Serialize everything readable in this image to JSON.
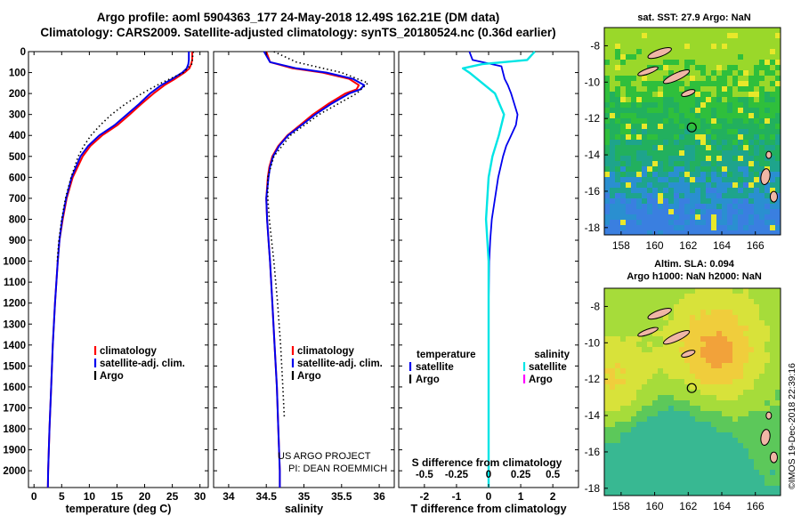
{
  "header": {
    "line1": "Argo profile: aoml 5904363_177 24-May-2018 12.49S 162.21E (DM data)",
    "line2": "Climatology: CARS2009. Satellite-adjusted climatology: synTS_20180524.nc (0.36d earlier)"
  },
  "depth_ticks": [
    0,
    100,
    200,
    300,
    400,
    500,
    600,
    700,
    800,
    900,
    1000,
    1100,
    1200,
    1300,
    1400,
    1500,
    1600,
    1700,
    1800,
    1900,
    2000
  ],
  "colors": {
    "climatology": "#ff0000",
    "satellite": "#0000ee",
    "argo": "#000000",
    "sat_cyan": "#00e5e5",
    "argo_magenta": "#ff00ff"
  },
  "panels": {
    "temperature": {
      "xlabel": "temperature (deg C)",
      "ticks": [
        "0",
        "5",
        "10",
        "15",
        "20",
        "25",
        "30"
      ],
      "legend": [
        "climatology",
        "satellite-adj. clim.",
        "Argo"
      ]
    },
    "salinity": {
      "xlabel": "salinity",
      "ticks": [
        "34",
        "34.5",
        "35",
        "35.5",
        "36"
      ],
      "legend": [
        "climatology",
        "satellite-adj. clim.",
        "Argo"
      ],
      "credit1": "US ARGO PROJECT",
      "credit2": "PI: DEAN ROEMMICH"
    },
    "difference": {
      "xlabel": "T difference from climatology",
      "toplabel": "S difference from climatology",
      "bottom_ticks": [
        "-2",
        "-1",
        "0",
        "1",
        "2"
      ],
      "top_ticks": [
        "-0.5",
        "-0.25",
        "0",
        "0.25",
        "0.5"
      ],
      "legend_left_title": "temperature",
      "legend_right_title": "salinity",
      "legend_items": [
        "satellite",
        "Argo"
      ]
    }
  },
  "maps": {
    "top_title": "sat. SST: 27.9 Argo: NaN",
    "bottom_title1": "Altim. SLA: 0.094",
    "bottom_title2": "Argo h1000: NaN h2000: NaN",
    "lon_ticks": [
      "158",
      "160",
      "162",
      "164",
      "166"
    ],
    "lat_ticks": [
      "-8",
      "-10",
      "-12",
      "-14",
      "-16",
      "-18"
    ]
  },
  "watermark": "©IMOS 19-Dec-2018 22:39:16",
  "chart_data": [
    {
      "type": "line",
      "xlabel": "temperature (deg C)",
      "xlim": [
        -1,
        31.5
      ],
      "ylim": [
        2080,
        0
      ],
      "series": [
        {
          "name": "climatology",
          "depth": [
            0,
            40,
            60,
            80,
            100,
            130,
            160,
            200,
            250,
            300,
            350,
            400,
            450,
            500,
            600,
            700,
            800,
            900,
            1000,
            1200,
            1400,
            1600,
            1800,
            2000,
            2080
          ],
          "values": [
            28.6,
            28.6,
            28.4,
            28.1,
            27.2,
            25.5,
            23.6,
            21.6,
            19.4,
            17.3,
            15.1,
            12.3,
            10.2,
            8.8,
            7.0,
            5.9,
            5.2,
            4.6,
            4.3,
            3.8,
            3.4,
            3.1,
            2.8,
            2.55,
            2.5
          ]
        },
        {
          "name": "satellite-adj. clim.",
          "depth": [
            0,
            40,
            60,
            80,
            100,
            130,
            160,
            200,
            250,
            300,
            350,
            400,
            450,
            500,
            600,
            700,
            800,
            900,
            1000,
            1200,
            1400,
            1600,
            1800,
            2000,
            2080
          ],
          "values": [
            28.0,
            28.0,
            27.9,
            27.6,
            26.8,
            25.0,
            23.0,
            21.0,
            19.0,
            16.8,
            14.6,
            11.8,
            9.8,
            8.4,
            6.8,
            5.8,
            5.1,
            4.6,
            4.3,
            3.8,
            3.4,
            3.1,
            2.8,
            2.55,
            2.5
          ]
        },
        {
          "name": "Argo",
          "depth": [
            0,
            60,
            100,
            150,
            200,
            250,
            300,
            350,
            400,
            450,
            500,
            600,
            700,
            800,
            900,
            1000
          ],
          "values": [
            28.8,
            28.5,
            27.0,
            23.0,
            19.5,
            16.5,
            14.0,
            12.0,
            10.3,
            9.0,
            8.0,
            6.7,
            5.7,
            5.0,
            4.5,
            4.2
          ]
        }
      ]
    },
    {
      "type": "line",
      "xlabel": "salinity",
      "xlim": [
        33.8,
        36.2
      ],
      "ylim": [
        2080,
        0
      ],
      "series": [
        {
          "name": "climatology",
          "depth": [
            0,
            50,
            80,
            100,
            130,
            160,
            180,
            200,
            250,
            300,
            350,
            400,
            450,
            500,
            550,
            600,
            700,
            800,
            900,
            1000,
            1200,
            1400,
            1600,
            1800,
            2000,
            2080
          ],
          "values": [
            34.5,
            34.55,
            34.85,
            35.25,
            35.6,
            35.73,
            35.7,
            35.55,
            35.32,
            35.12,
            34.95,
            34.78,
            34.66,
            34.58,
            34.54,
            34.52,
            34.5,
            34.51,
            34.53,
            34.55,
            34.58,
            34.61,
            34.64,
            34.66,
            34.68,
            34.68
          ]
        },
        {
          "name": "satellite-adj. clim.",
          "depth": [
            0,
            50,
            80,
            100,
            130,
            160,
            180,
            200,
            250,
            300,
            350,
            400,
            450,
            500,
            550,
            600,
            700,
            800,
            900,
            1000,
            1200,
            1400,
            1600,
            1800,
            2000,
            2080
          ],
          "values": [
            34.47,
            34.55,
            34.9,
            35.3,
            35.65,
            35.8,
            35.75,
            35.6,
            35.36,
            35.15,
            34.97,
            34.79,
            34.67,
            34.59,
            34.55,
            34.53,
            34.5,
            34.51,
            34.53,
            34.55,
            34.58,
            34.61,
            34.64,
            34.66,
            34.68,
            34.68
          ]
        },
        {
          "name": "Argo",
          "depth": [
            0,
            50,
            100,
            150,
            200,
            250,
            300,
            400,
            500,
            600,
            700,
            800,
            900,
            1000,
            1200,
            1400,
            1600,
            1750
          ],
          "values": [
            34.6,
            34.9,
            35.5,
            35.85,
            35.7,
            35.45,
            35.2,
            34.82,
            34.6,
            34.52,
            34.52,
            34.54,
            34.57,
            34.6,
            34.65,
            34.69,
            34.72,
            34.74
          ]
        }
      ]
    },
    {
      "type": "line",
      "xlabel": "T difference from climatology",
      "xlim": [
        -2.8,
        2.8
      ],
      "ylim": [
        2080,
        0
      ],
      "series": [
        {
          "name": "satellite",
          "depth": [
            0,
            40,
            50,
            70,
            100,
            130,
            160,
            200,
            250,
            300,
            350,
            400,
            450,
            500,
            600,
            700,
            800,
            900,
            1000,
            1200,
            1400,
            1600,
            1800,
            2000,
            2080
          ],
          "values": [
            -0.6,
            -0.5,
            -0.2,
            0.4,
            0.45,
            0.5,
            0.6,
            0.7,
            0.8,
            0.9,
            0.85,
            0.7,
            0.55,
            0.45,
            0.3,
            0.2,
            0.1,
            0.05,
            0.02,
            0.0,
            0.0,
            0.0,
            0.0,
            0.0,
            0.0
          ]
        },
        {
          "name": "salinity satellite",
          "depth": [
            0,
            40,
            60,
            80,
            100,
            150,
            200,
            300,
            400,
            500,
            600,
            800,
            1000,
            1200,
            1500,
            1800,
            2000,
            2080
          ],
          "values": [
            0.36,
            0.3,
            -0.05,
            -0.2,
            -0.15,
            -0.05,
            0.05,
            0.12,
            0.08,
            0.03,
            0.0,
            -0.02,
            0.0,
            0.0,
            0.0,
            0.0,
            0.0,
            0.0
          ]
        }
      ]
    }
  ]
}
